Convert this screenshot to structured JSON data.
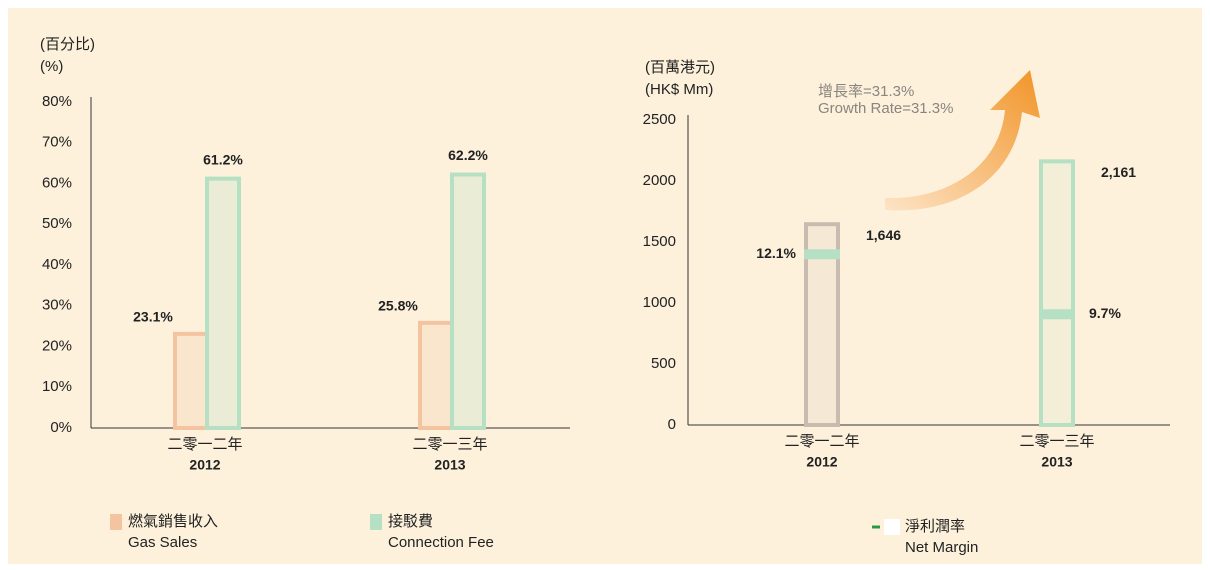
{
  "chart_data": [
    {
      "type": "bar",
      "axis_title": [
        "(百分比)",
        "(%)"
      ],
      "categories": [
        [
          "二零一二年",
          "2012"
        ],
        [
          "二零一三年",
          "2013"
        ]
      ],
      "series": [
        {
          "name": [
            "燃氣銷售收入",
            "Gas Sales"
          ],
          "color": "#f4c3a0",
          "values": [
            23.1,
            25.8
          ],
          "value_labels": [
            "23.1%",
            "25.8%"
          ]
        },
        {
          "name": [
            "接駁費",
            "Connection Fee"
          ],
          "color": "#b5e0c4",
          "values": [
            61.2,
            62.2
          ],
          "value_labels": [
            "61.2%",
            "62.2%"
          ]
        }
      ],
      "ylim": [
        0,
        80
      ],
      "yticks": [
        {
          "value": 0,
          "label": "0%"
        },
        {
          "value": 10,
          "label": "10%"
        },
        {
          "value": 20,
          "label": "20%"
        },
        {
          "value": 30,
          "label": "30%"
        },
        {
          "value": 40,
          "label": "40%"
        },
        {
          "value": 50,
          "label": "50%"
        },
        {
          "value": 60,
          "label": "60%"
        },
        {
          "value": 70,
          "label": "70%"
        },
        {
          "value": 80,
          "label": "80%"
        }
      ],
      "legend": "bottom-left"
    },
    {
      "type": "bar",
      "axis_title": [
        "(百萬港元)",
        "(HK$ Mm)"
      ],
      "categories": [
        [
          "二零一二年",
          "2012"
        ],
        [
          "二零一三年",
          "2013"
        ]
      ],
      "values": [
        1646,
        2161
      ],
      "value_labels": [
        "1,646",
        "2,161"
      ],
      "colors": [
        "#c7bcaf",
        "#b5e0c4"
      ],
      "net_margin": {
        "name": [
          "淨利潤率",
          "Net Margin"
        ],
        "color": "#b5e0c4",
        "values": [
          12.1,
          9.7
        ],
        "value_labels": [
          "12.1%",
          "9.7%"
        ]
      },
      "annotation": [
        "增長率=31.3%",
        "Growth Rate=31.3%"
      ],
      "ylim": [
        0,
        2500
      ],
      "yticks": [
        0,
        500,
        1000,
        1500,
        2000,
        2500
      ],
      "legend": "bottom-right"
    }
  ]
}
